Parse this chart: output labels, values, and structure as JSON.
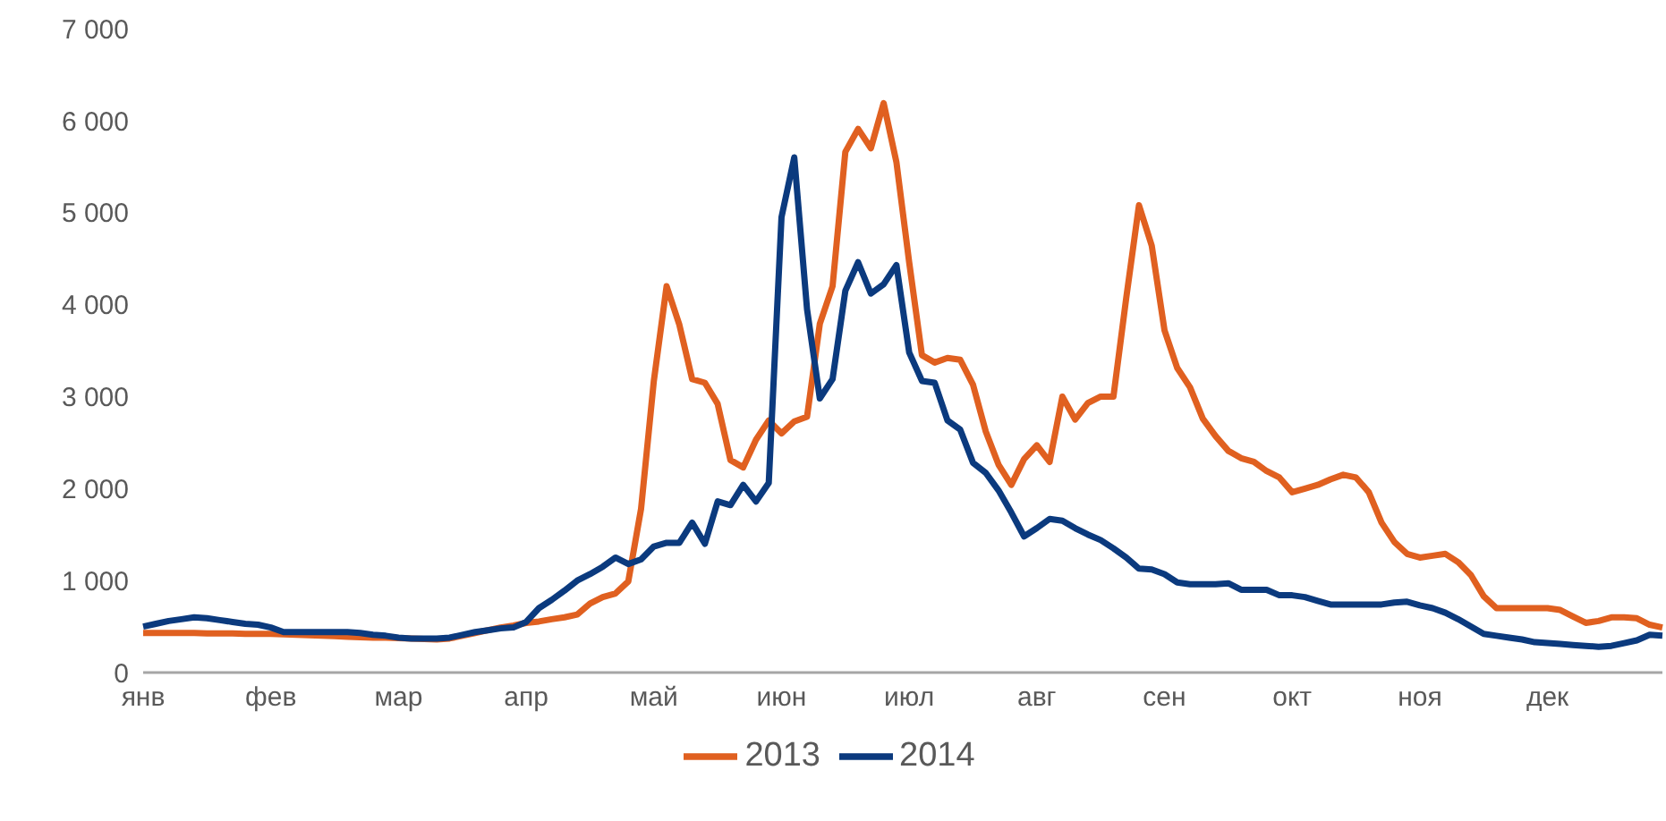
{
  "chart_data": {
    "type": "line",
    "categories": [
      "янв",
      null,
      null,
      null,
      null,
      null,
      null,
      null,
      null,
      null,
      "фев",
      null,
      null,
      null,
      null,
      null,
      null,
      null,
      null,
      null,
      "мар",
      null,
      null,
      null,
      null,
      null,
      null,
      null,
      null,
      null,
      "апр",
      null,
      null,
      null,
      null,
      null,
      null,
      null,
      null,
      null,
      "май",
      null,
      null,
      null,
      null,
      null,
      null,
      null,
      null,
      null,
      "июн",
      null,
      null,
      null,
      null,
      null,
      null,
      null,
      null,
      null,
      "июл",
      null,
      null,
      null,
      null,
      null,
      null,
      null,
      null,
      null,
      "авг",
      null,
      null,
      null,
      null,
      null,
      null,
      null,
      null,
      null,
      "сен",
      null,
      null,
      null,
      null,
      null,
      null,
      null,
      null,
      null,
      "окт",
      null,
      null,
      null,
      null,
      null,
      null,
      null,
      null,
      null,
      "ноя",
      null,
      null,
      null,
      null,
      null,
      null,
      null,
      null,
      null,
      "дек",
      null,
      null,
      null,
      null,
      null,
      null,
      null,
      null,
      null
    ],
    "ylim": [
      0,
      7000
    ],
    "yticks": [
      0,
      {
        "value": 1000,
        "label": "1 000"
      },
      {
        "value": 2000,
        "label": "2 000"
      },
      {
        "value": 3000,
        "label": "3 000"
      },
      {
        "value": 4000,
        "label": "4 000"
      },
      {
        "value": 5000,
        "label": "5 000"
      },
      {
        "value": 6000,
        "label": "6 000"
      },
      {
        "value": 7000,
        "label": "7 000"
      }
    ],
    "legend": "bottom",
    "series": [
      {
        "name": "2013",
        "color": "#e06020",
        "values": [
          430,
          430,
          430,
          430,
          430,
          425,
          425,
          425,
          420,
          420,
          420,
          415,
          410,
          405,
          400,
          395,
          390,
          385,
          380,
          380,
          375,
          370,
          365,
          360,
          370,
          400,
          430,
          460,
          490,
          510,
          540,
          555,
          580,
          600,
          630,
          750,
          820,
          860,
          990,
          1780,
          3170,
          4200,
          3780,
          3190,
          3150,
          2920,
          2310,
          2230,
          2530,
          2740,
          2600,
          2730,
          2780,
          3790,
          4200,
          5660,
          5910,
          5700,
          6190,
          5550,
          4460,
          3450,
          3370,
          3420,
          3400,
          3130,
          2620,
          2260,
          2040,
          2320,
          2470,
          2290,
          3000,
          2750,
          2930,
          3000,
          3000,
          4070,
          5080,
          4640,
          3720,
          3310,
          3100,
          2760,
          2570,
          2410,
          2330,
          2290,
          2190,
          2120,
          1960,
          2000,
          2040,
          2100,
          2150,
          2120,
          1960,
          1630,
          1420,
          1290,
          1250,
          1270,
          1290,
          1200,
          1060,
          830,
          700,
          700,
          700,
          700,
          700,
          680,
          610,
          540,
          560,
          600,
          600,
          590,
          520,
          490
        ]
      },
      {
        "name": "2014",
        "color": "#0b3a7e",
        "values": [
          500,
          530,
          560,
          580,
          600,
          590,
          570,
          550,
          530,
          520,
          490,
          440,
          440,
          440,
          440,
          440,
          440,
          430,
          410,
          400,
          380,
          370,
          370,
          370,
          380,
          410,
          440,
          460,
          480,
          490,
          550,
          700,
          790,
          890,
          1000,
          1070,
          1150,
          1250,
          1180,
          1230,
          1370,
          1410,
          1410,
          1630,
          1400,
          1860,
          1820,
          2040,
          1860,
          2060,
          4950,
          5600,
          3950,
          2980,
          3190,
          4150,
          4460,
          4120,
          4220,
          4430,
          3480,
          3170,
          3150,
          2740,
          2640,
          2280,
          2170,
          1980,
          1740,
          1480,
          1570,
          1670,
          1650,
          1570,
          1500,
          1440,
          1350,
          1250,
          1130,
          1120,
          1070,
          980,
          960,
          960,
          960,
          970,
          900,
          900,
          900,
          840,
          840,
          820,
          780,
          740,
          740,
          740,
          740,
          740,
          760,
          770,
          730,
          700,
          650,
          580,
          500,
          420,
          400,
          380,
          360,
          330,
          320,
          310,
          300,
          290,
          280,
          290,
          320,
          350,
          410,
          400
        ]
      }
    ]
  }
}
